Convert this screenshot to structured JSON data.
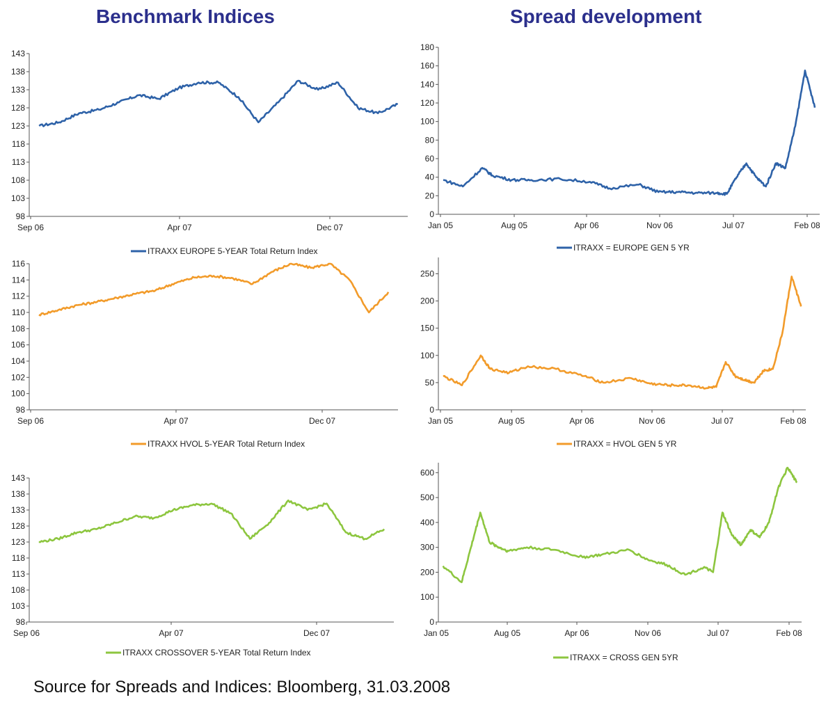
{
  "headings": {
    "left": "Benchmark Indices",
    "right": "Spread development"
  },
  "source_note": "Source for Spreads and Indices: Bloomberg, 31.03.2008",
  "colors": {
    "blue": "#2e62a8",
    "orange": "#f29b2a",
    "green": "#8dc63f",
    "heading": "#2b2f8c"
  },
  "chart_data": [
    {
      "type": "line",
      "legend": "ITRAXX EUROPE 5-YEAR Total Return Index",
      "color": "#2e62a8",
      "x_tick_labels": [
        "Sep 06",
        "Apr 07",
        "Dec 07"
      ],
      "y_tick_labels": [
        "98",
        "103",
        "108",
        "113",
        "118",
        "123",
        "128",
        "133",
        "138",
        "143"
      ],
      "ylim": [
        98,
        143
      ],
      "x_range": [
        "2006-09",
        "2008-03"
      ],
      "series": [
        {
          "x": [
            "2006-09",
            "2006-10",
            "2006-11",
            "2006-12",
            "2007-01",
            "2007-02",
            "2007-03",
            "2007-04",
            "2007-05",
            "2007-06",
            "2007-07",
            "2007-08",
            "2007-09",
            "2007-10",
            "2007-11",
            "2007-12",
            "2008-01",
            "2008-02",
            "2008-03"
          ],
          "values": [
            123,
            124,
            126.5,
            127.5,
            129.5,
            131.5,
            130.5,
            133.5,
            135,
            135,
            131,
            124,
            129.5,
            135.5,
            133,
            135,
            128,
            126.5,
            129
          ]
        }
      ]
    },
    {
      "type": "line",
      "legend": "ITRAXX HVOL 5-YEAR Total Return Index",
      "color": "#f29b2a",
      "x_tick_labels": [
        "Sep 06",
        "Apr 07",
        "Dec 07"
      ],
      "y_tick_labels": [
        "98",
        "100",
        "102",
        "104",
        "106",
        "108",
        "110",
        "112",
        "114",
        "116"
      ],
      "ylim": [
        98,
        116
      ],
      "x_range": [
        "2006-09",
        "2008-03"
      ],
      "series": [
        {
          "x": [
            "2006-09",
            "2006-10",
            "2006-11",
            "2006-12",
            "2007-01",
            "2007-02",
            "2007-03",
            "2007-04",
            "2007-05",
            "2007-06",
            "2007-07",
            "2007-08",
            "2007-09",
            "2007-10",
            "2007-11",
            "2007-12",
            "2008-01",
            "2008-02",
            "2008-03"
          ],
          "values": [
            109.7,
            110.3,
            110.9,
            111.3,
            111.8,
            112.3,
            112.7,
            113.6,
            114.3,
            114.5,
            114.2,
            113.5,
            115,
            116,
            115.5,
            116,
            114,
            110,
            112.5
          ]
        }
      ]
    },
    {
      "type": "line",
      "legend": "ITRAXX CROSSOVER 5-YEAR Total Return Index",
      "color": "#8dc63f",
      "x_tick_labels": [
        "Sep 06",
        "Apr 07",
        "Dec 07"
      ],
      "y_tick_labels": [
        "98",
        "103",
        "108",
        "113",
        "118",
        "123",
        "128",
        "133",
        "138",
        "143"
      ],
      "ylim": [
        98,
        143
      ],
      "x_range": [
        "2006-09",
        "2008-03"
      ],
      "series": [
        {
          "x": [
            "2006-09",
            "2006-10",
            "2006-11",
            "2006-12",
            "2007-01",
            "2007-02",
            "2007-03",
            "2007-04",
            "2007-05",
            "2007-06",
            "2007-07",
            "2007-08",
            "2007-09",
            "2007-10",
            "2007-11",
            "2007-12",
            "2008-01",
            "2008-02",
            "2008-03"
          ],
          "values": [
            123,
            124,
            126,
            127,
            129,
            131,
            130.5,
            133,
            134.5,
            135,
            132,
            124,
            129,
            136,
            133,
            135,
            126,
            124,
            127
          ]
        }
      ]
    },
    {
      "type": "line",
      "legend": "ITRAXX = EUROPE GEN 5 YR",
      "color": "#2e62a8",
      "x_tick_labels": [
        "Jan 05",
        "Aug 05",
        "Apr 06",
        "Nov 06",
        "Jul 07",
        "Feb 08"
      ],
      "y_tick_labels": [
        "0",
        "20",
        "40",
        "60",
        "80",
        "100",
        "120",
        "140",
        "160",
        "180"
      ],
      "ylim": [
        0,
        180
      ],
      "x_range": [
        "2005-01",
        "2008-03"
      ],
      "series": [
        {
          "x": [
            "2005-01",
            "2005-03",
            "2005-05",
            "2005-06",
            "2005-08",
            "2005-10",
            "2006-01",
            "2006-04",
            "2006-06",
            "2006-09",
            "2006-11",
            "2007-01",
            "2007-03",
            "2007-05",
            "2007-06",
            "2007-07",
            "2007-08",
            "2007-09",
            "2007-10",
            "2007-11",
            "2007-12",
            "2008-01",
            "2008-02",
            "2008-03"
          ],
          "values": [
            37,
            30,
            50,
            42,
            37,
            37,
            38,
            35,
            28,
            32,
            24,
            24,
            23,
            23,
            22,
            40,
            55,
            40,
            30,
            55,
            50,
            95,
            155,
            115
          ]
        }
      ]
    },
    {
      "type": "line",
      "legend": "ITRAXX = HVOL GEN   5 YR",
      "color": "#f29b2a",
      "x_tick_labels": [
        "Jan 05",
        "Aug 05",
        "Apr 06",
        "Nov 06",
        "Jul 07",
        "Feb 08"
      ],
      "y_tick_labels": [
        "0",
        "50",
        "100",
        "150",
        "200",
        "250"
      ],
      "ylim": [
        0,
        280
      ],
      "x_range": [
        "2005-01",
        "2008-03"
      ],
      "series": [
        {
          "x": [
            "2005-01",
            "2005-03",
            "2005-05",
            "2005-06",
            "2005-08",
            "2005-10",
            "2006-01",
            "2006-04",
            "2006-06",
            "2006-09",
            "2006-11",
            "2007-01",
            "2007-03",
            "2007-05",
            "2007-06",
            "2007-07",
            "2007-08",
            "2007-09",
            "2007-10",
            "2007-11",
            "2007-12",
            "2008-01",
            "2008-02",
            "2008-03"
          ],
          "values": [
            62,
            45,
            100,
            75,
            68,
            80,
            75,
            62,
            50,
            58,
            48,
            45,
            45,
            40,
            42,
            88,
            62,
            55,
            50,
            72,
            75,
            140,
            245,
            190
          ]
        }
      ]
    },
    {
      "type": "line",
      "legend": "ITRAXX = CROSS GEN  5YR",
      "color": "#8dc63f",
      "x_tick_labels": [
        "Jan 05",
        "Aug 05",
        "Apr 06",
        "Nov 06",
        "Jul 07",
        "Feb 08"
      ],
      "y_tick_labels": [
        "0",
        "100",
        "200",
        "300",
        "400",
        "500",
        "600"
      ],
      "ylim": [
        0,
        640
      ],
      "x_range": [
        "2005-01",
        "2008-03"
      ],
      "series": [
        {
          "x": [
            "2005-01",
            "2005-03",
            "2005-04",
            "2005-05",
            "2005-06",
            "2005-07",
            "2005-08",
            "2005-10",
            "2006-01",
            "2006-04",
            "2006-06",
            "2006-09",
            "2006-11",
            "2007-01",
            "2007-03",
            "2007-05",
            "2007-06",
            "2007-07",
            "2007-08",
            "2007-09",
            "2007-10",
            "2007-11",
            "2007-12",
            "2008-01",
            "2008-02",
            "2008-03"
          ],
          "values": [
            225,
            160,
            300,
            440,
            320,
            300,
            285,
            300,
            290,
            260,
            270,
            290,
            250,
            230,
            190,
            220,
            200,
            440,
            350,
            310,
            370,
            340,
            400,
            540,
            620,
            560
          ]
        }
      ]
    }
  ]
}
